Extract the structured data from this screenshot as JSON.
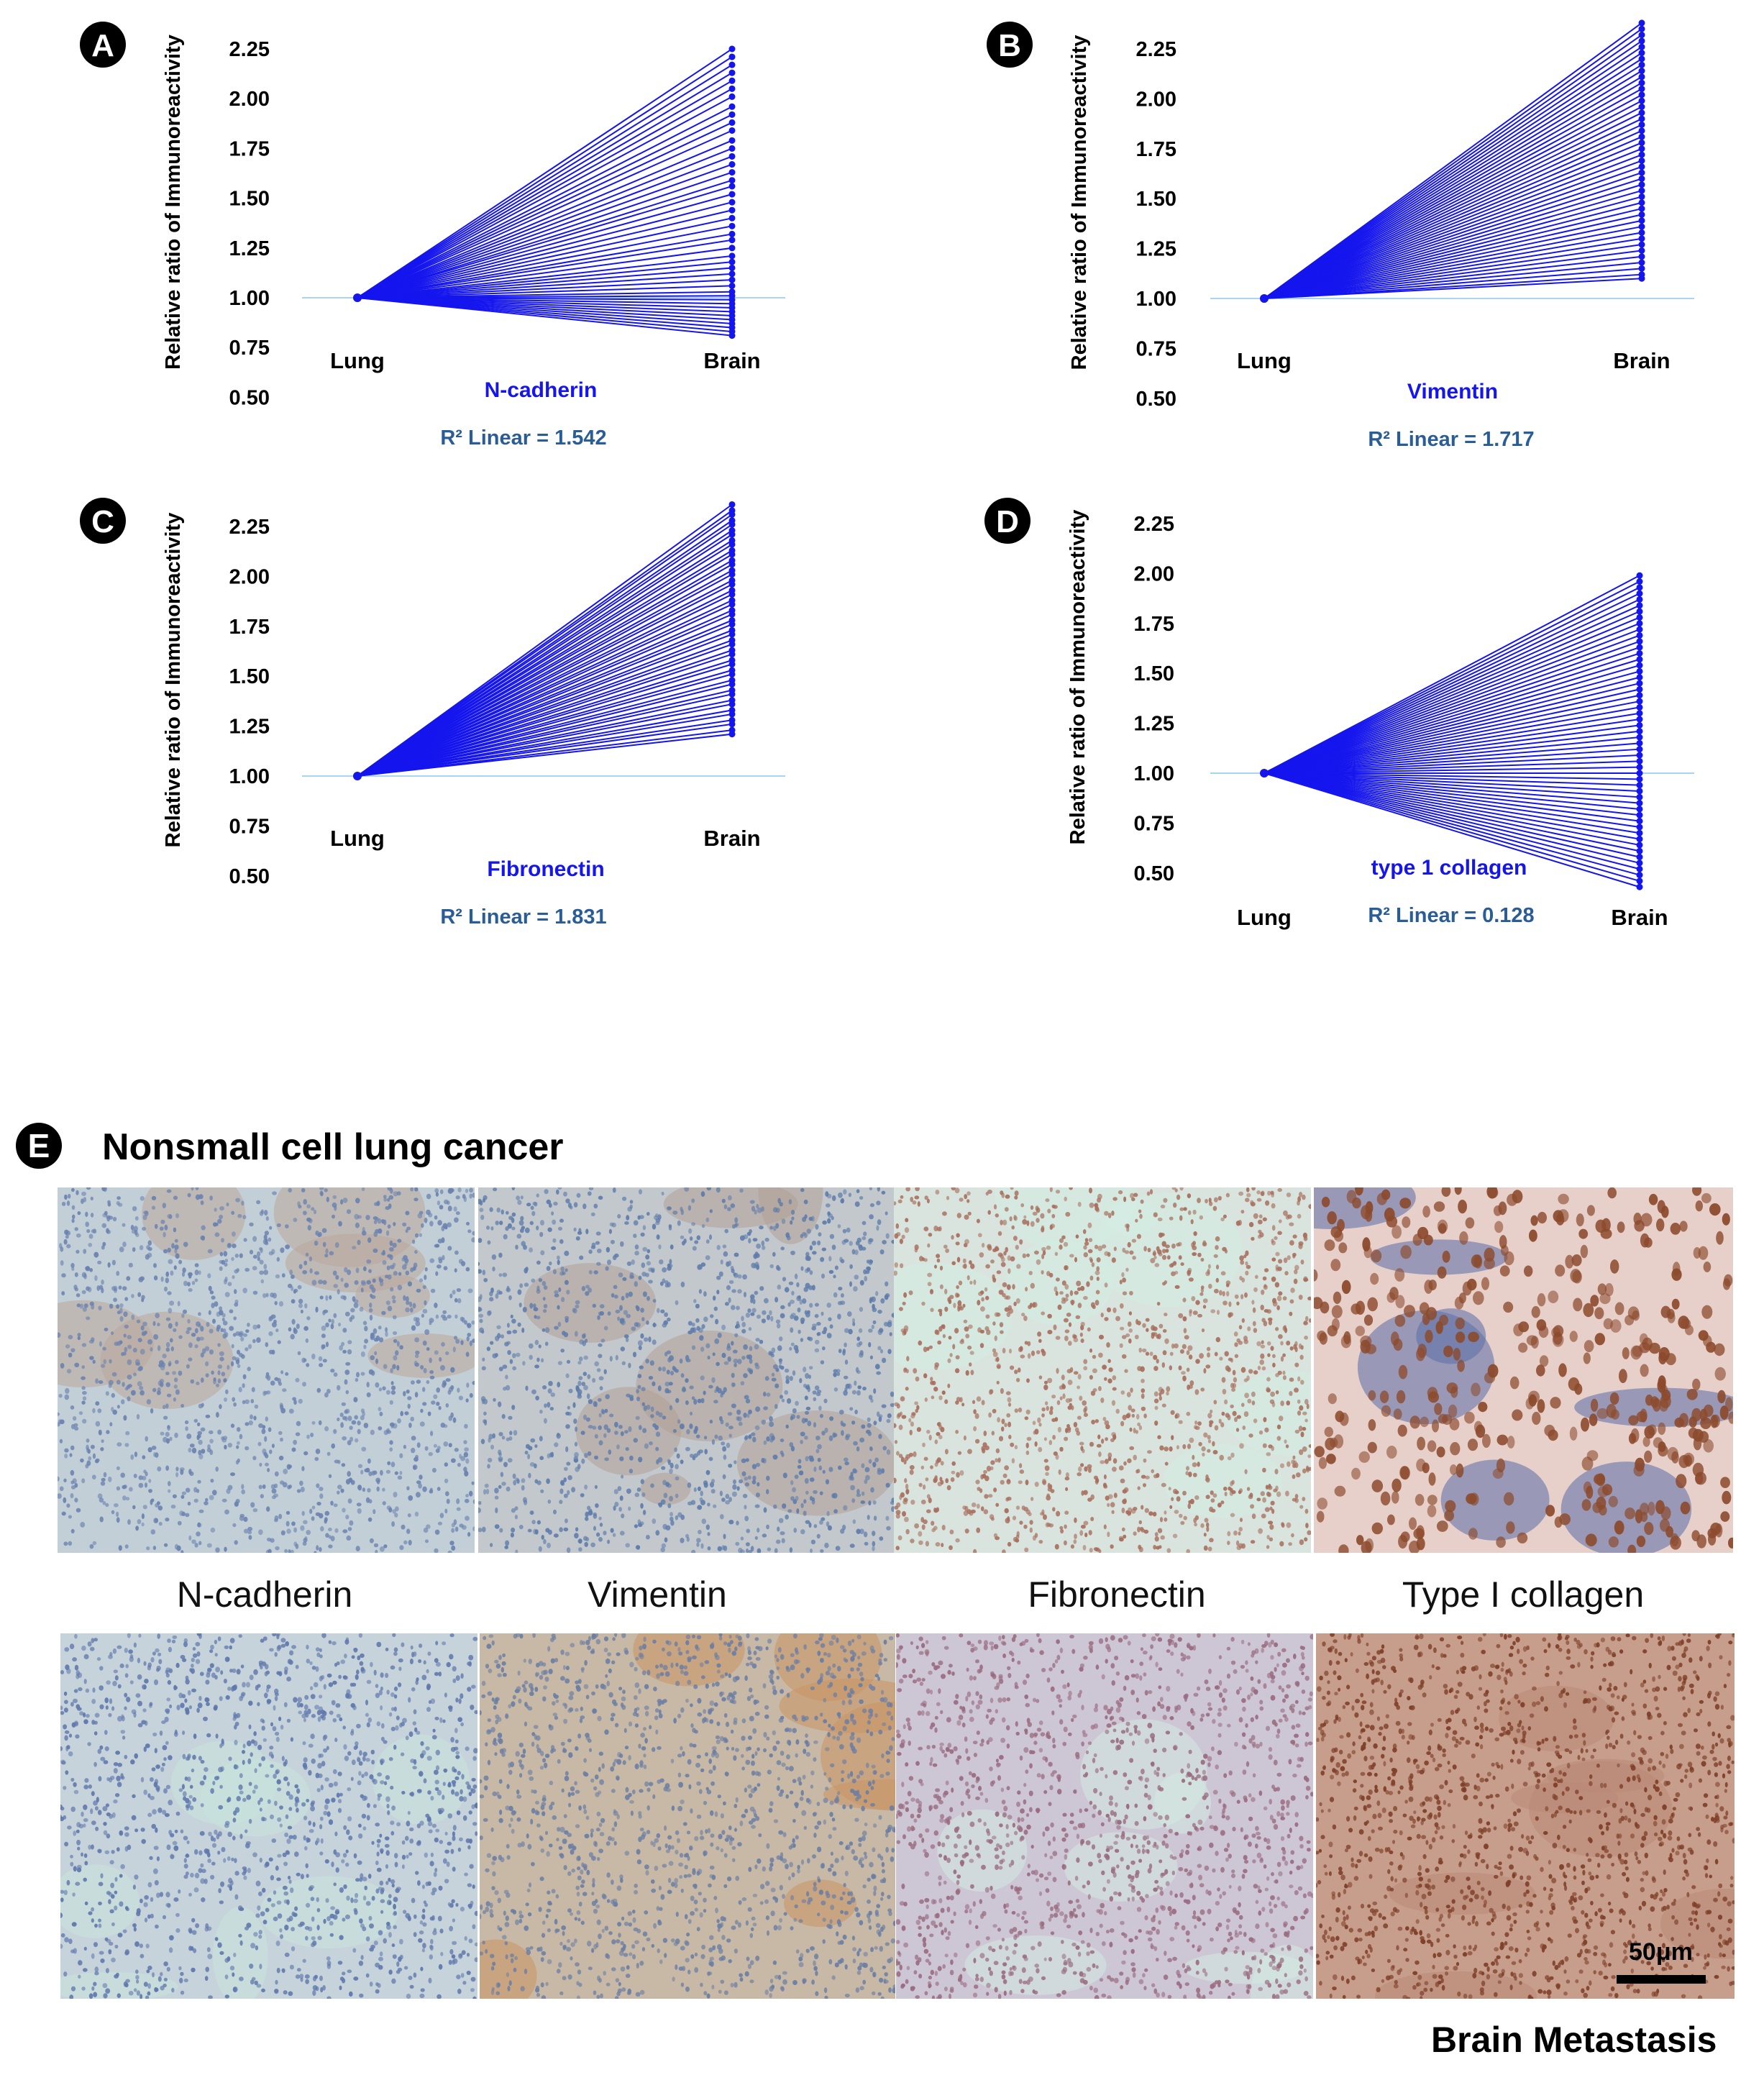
{
  "colors": {
    "line": "#1515ee",
    "baseline": "#a9d4f2",
    "r2_text": "#2a5d96",
    "marker_label": "#1515ee"
  },
  "chart_data": [
    {
      "panel": "A",
      "type": "line",
      "ylabel": "Relative ratio of Immunoreactivity",
      "x_categories": [
        "Lung",
        "Brain"
      ],
      "y_ticks": [
        "2.25",
        "2.00",
        "1.75",
        "1.50",
        "1.25",
        "1.00",
        "0.75",
        "0.50"
      ],
      "ylim": [
        0.5,
        2.25
      ],
      "baseline": 1.0,
      "marker": "N-cadherin",
      "r2_text": "R² Linear = 1.542",
      "series_start": 1.0,
      "series_end": [
        2.25,
        2.21,
        2.17,
        2.13,
        2.09,
        2.05,
        2.01,
        1.96,
        1.92,
        1.88,
        1.84,
        1.79,
        1.75,
        1.71,
        1.67,
        1.63,
        1.59,
        1.56,
        1.52,
        1.48,
        1.44,
        1.4,
        1.36,
        1.32,
        1.29,
        1.25,
        1.21,
        1.18,
        1.15,
        1.12,
        1.09,
        1.06,
        1.03,
        1.01,
        0.99,
        0.97,
        0.95,
        0.93,
        0.91,
        0.89,
        0.87,
        0.85,
        0.83,
        0.81
      ]
    },
    {
      "panel": "B",
      "type": "line",
      "ylabel": "Relative ratio of Immunoreactivity",
      "x_categories": [
        "Lung",
        "Brain"
      ],
      "y_ticks": [
        "2.25",
        "2.00",
        "1.75",
        "1.50",
        "1.25",
        "1.00",
        "0.75",
        "0.50"
      ],
      "ylim": [
        0.5,
        2.25
      ],
      "baseline": 1.0,
      "marker": "Vimentin",
      "r2_text": "R² Linear = 1.717",
      "series_start": 1.0,
      "series_end": [
        2.38,
        2.35,
        2.32,
        2.29,
        2.26,
        2.23,
        2.2,
        2.17,
        2.14,
        2.11,
        2.08,
        2.05,
        2.02,
        1.99,
        1.96,
        1.93,
        1.9,
        1.87,
        1.84,
        1.81,
        1.78,
        1.75,
        1.72,
        1.69,
        1.66,
        1.63,
        1.6,
        1.57,
        1.54,
        1.51,
        1.48,
        1.45,
        1.42,
        1.39,
        1.36,
        1.33,
        1.3,
        1.27,
        1.24,
        1.21,
        1.18,
        1.15,
        1.12,
        1.1
      ]
    },
    {
      "panel": "C",
      "type": "line",
      "ylabel": "Relative ratio of Immunoreactivity",
      "x_categories": [
        "Lung",
        "Brain"
      ],
      "y_ticks": [
        "2.25",
        "2.00",
        "1.75",
        "1.50",
        "1.25",
        "1.00",
        "0.75",
        "0.50"
      ],
      "ylim": [
        0.5,
        2.25
      ],
      "baseline": 1.0,
      "marker": "Fibronectin",
      "r2_text": "R² Linear = 1.831",
      "series_start": 1.0,
      "series_end": [
        2.36,
        2.33,
        2.31,
        2.28,
        2.26,
        2.23,
        2.21,
        2.18,
        2.16,
        2.13,
        2.11,
        2.08,
        2.06,
        2.03,
        2.01,
        1.98,
        1.96,
        1.93,
        1.91,
        1.88,
        1.86,
        1.83,
        1.81,
        1.78,
        1.76,
        1.73,
        1.71,
        1.68,
        1.66,
        1.63,
        1.61,
        1.58,
        1.56,
        1.53,
        1.51,
        1.48,
        1.46,
        1.43,
        1.41,
        1.38,
        1.36,
        1.33,
        1.31,
        1.28,
        1.26,
        1.23,
        1.21
      ]
    },
    {
      "panel": "D",
      "type": "line",
      "ylabel": "Relative ratio of Immunoreactivity",
      "x_categories": [
        "Lung",
        "Brain"
      ],
      "y_ticks": [
        "2.25",
        "2.00",
        "1.75",
        "1.50",
        "1.25",
        "1.00",
        "0.75",
        "0.50"
      ],
      "ylim": [
        0.5,
        2.25
      ],
      "baseline": 1.0,
      "marker": "type 1 collagen",
      "r2_text": "R² Linear = 0.128",
      "series_start": 1.0,
      "series_end": [
        1.99,
        1.96,
        1.93,
        1.9,
        1.87,
        1.84,
        1.81,
        1.78,
        1.75,
        1.72,
        1.69,
        1.66,
        1.63,
        1.6,
        1.57,
        1.54,
        1.51,
        1.48,
        1.45,
        1.42,
        1.39,
        1.36,
        1.33,
        1.3,
        1.27,
        1.24,
        1.21,
        1.18,
        1.15,
        1.12,
        1.09,
        1.06,
        1.03,
        1.0,
        0.97,
        0.94,
        0.91,
        0.88,
        0.85,
        0.82,
        0.79,
        0.76,
        0.73,
        0.7,
        0.67,
        0.64,
        0.61,
        0.58,
        0.55,
        0.52,
        0.49,
        0.46,
        0.43
      ]
    }
  ],
  "panel_e": {
    "badge": "E",
    "title": "Nonsmall cell lung cancer",
    "bottom_title": "Brain Metastasis",
    "scale_label": "50μm",
    "stains": [
      "N-cadherin",
      "Vimentin",
      "Fibronectin",
      "Type I collagen"
    ],
    "micrographs": {
      "lung": [
        {
          "stain": "N-cadherin",
          "tissue": "lung",
          "bg": "#c3cfd6",
          "nucleus": "#6a82b0",
          "secondary": "#b9a79a"
        },
        {
          "stain": "Vimentin",
          "tissue": "lung",
          "bg": "#c2c8cc",
          "nucleus": "#5f7cab",
          "secondary": "#b3a195"
        },
        {
          "stain": "Fibronectin",
          "tissue": "lung",
          "bg": "#d8e4dd",
          "nucleus": "#a86d5c",
          "secondary": "#d4ede4"
        },
        {
          "stain": "Type I collagen",
          "tissue": "lung",
          "bg": "#e7cfca",
          "nucleus": "#8c4a2c",
          "secondary": "#5a6ea8"
        }
      ],
      "brain": [
        {
          "stain": "N-cadherin",
          "tissue": "brain",
          "bg": "#c7d3da",
          "nucleus": "#5f78ad",
          "secondary": "#c9e4dc"
        },
        {
          "stain": "Vimentin",
          "tissue": "brain",
          "bg": "#c8b9a6",
          "nucleus": "#6b7ea4",
          "secondary": "#c89463"
        },
        {
          "stain": "Fibronectin",
          "tissue": "brain",
          "bg": "#cdc6d4",
          "nucleus": "#9a6b80",
          "secondary": "#d3ebe2"
        },
        {
          "stain": "Type I collagen",
          "tissue": "brain",
          "bg": "#c79e8c",
          "nucleus": "#7e3f28",
          "secondary": "#b98877"
        }
      ]
    }
  }
}
